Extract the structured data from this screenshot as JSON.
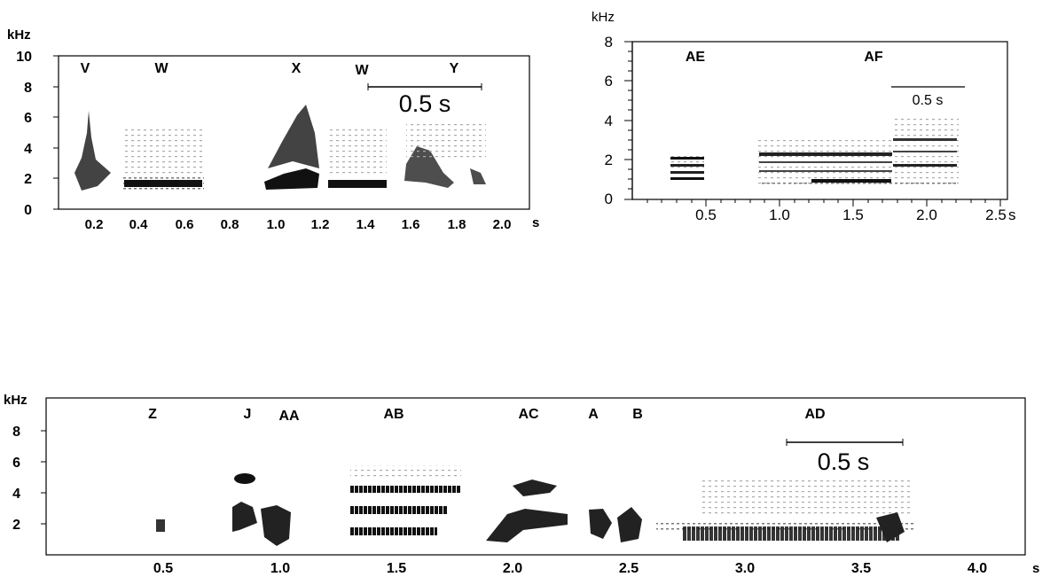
{
  "panel_a": {
    "y_unit": "kHz",
    "x_unit": "s",
    "y_ticks": [
      "10",
      "8",
      "6",
      "4",
      "2",
      "0"
    ],
    "x_ticks": [
      "0.2",
      "0.4",
      "0.6",
      "0.8",
      "1.0",
      "1.2",
      "1.4",
      "1.6",
      "1.8",
      "2.0"
    ],
    "syllables": [
      "V",
      "W",
      "X",
      "W",
      "Y"
    ],
    "scale_bar": "0.5 s"
  },
  "panel_b": {
    "y_unit": "kHz",
    "x_unit": "s",
    "y_ticks": [
      "8",
      "6",
      "4",
      "2",
      "0"
    ],
    "x_ticks": [
      "0.5",
      "1.0",
      "1.5",
      "2.0",
      "2.5"
    ],
    "syllables": [
      "AE",
      "AF"
    ],
    "scale_bar": "0.5 s"
  },
  "panel_c": {
    "y_unit": "kHz",
    "x_unit": "s",
    "y_ticks": [
      "8",
      "6",
      "4",
      "2"
    ],
    "x_ticks": [
      "0.5",
      "1.0",
      "1.5",
      "2.0",
      "2.5",
      "3.0",
      "3.5",
      "4.0"
    ],
    "syllables": [
      "Z",
      "J",
      "AA",
      "AB",
      "AC",
      "A",
      "B",
      "AD"
    ],
    "scale_bar": "0.5 s"
  },
  "colors": {
    "ink": "#000000",
    "paper": "#ffffff"
  }
}
